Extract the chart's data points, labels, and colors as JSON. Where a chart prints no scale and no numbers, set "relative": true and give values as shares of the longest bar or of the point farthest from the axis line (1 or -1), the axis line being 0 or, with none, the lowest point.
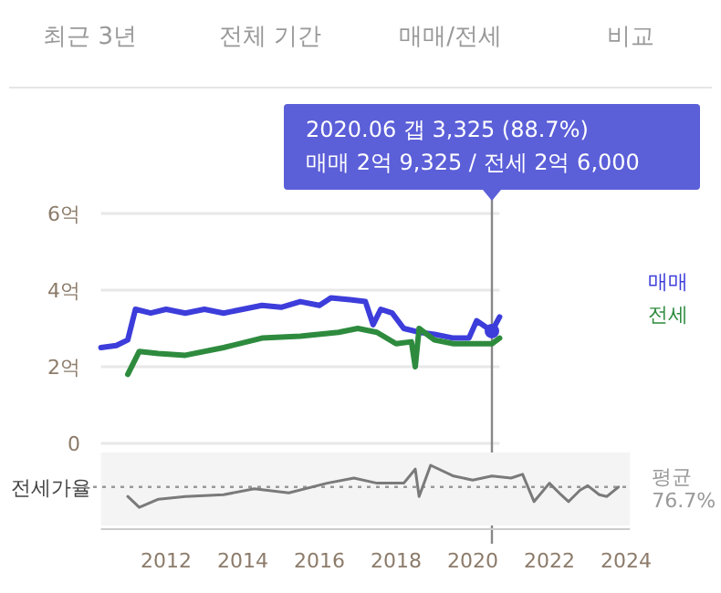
{
  "chart_data": [
    {
      "type": "other",
      "annotations": [
        "최근 3년",
        "전체 기간",
        "매매/전세",
        "비교"
      ]
    },
    {
      "type": "line",
      "xlim": [
        2010.3,
        2020.7
      ],
      "ylim": [
        0,
        6
      ],
      "yticks": [
        {
          "value": 6,
          "label": "6억"
        },
        {
          "value": 4,
          "label": "4억"
        },
        {
          "value": 2,
          "label": "2억"
        },
        0
      ],
      "xticks": [
        2012,
        2014,
        2016,
        2018,
        2020
      ],
      "grid": "y",
      "tick_labels": "y",
      "marker": "none",
      "line_style": "solid",
      "ref_lines": [
        {
          "axis": "x",
          "value": 2020.5,
          "label": null,
          "color": "#888888"
        }
      ],
      "annotations": [
        "2020.06  갭 3,325 (88.7%)\n매매 2억 9,325 / 전세 2억 6,000"
      ],
      "series": [
        {
          "name": "매매",
          "color": "#3d3ddb",
          "x": [
            2010.3,
            2010.7,
            2011.0,
            2011.2,
            2011.6,
            2012,
            2012.5,
            2013,
            2013.5,
            2014,
            2014.5,
            2015,
            2015.5,
            2016,
            2016.3,
            2016.8,
            2017.2,
            2017.4,
            2017.6,
            2017.9,
            2018.2,
            2018.6,
            2019,
            2019.5,
            2019.9,
            2020.1,
            2020.5,
            2020.7
          ],
          "values": [
            2.5,
            2.55,
            2.7,
            3.5,
            3.4,
            3.5,
            3.4,
            3.5,
            3.4,
            3.5,
            3.6,
            3.55,
            3.7,
            3.6,
            3.8,
            3.75,
            3.7,
            3.1,
            3.5,
            3.4,
            3.0,
            2.9,
            2.85,
            2.75,
            2.75,
            3.2,
            2.93,
            3.3
          ]
        },
        {
          "name": "전세",
          "color": "#2e8b3e",
          "x": [
            2011.0,
            2011.3,
            2011.8,
            2012.5,
            2013.5,
            2014.5,
            2015.5,
            2016.5,
            2017.0,
            2017.5,
            2018.0,
            2018.4,
            2018.5,
            2018.6,
            2019.0,
            2019.5,
            2020.0,
            2020.5,
            2020.7
          ],
          "values": [
            1.8,
            2.4,
            2.35,
            2.3,
            2.5,
            2.75,
            2.8,
            2.9,
            3.0,
            2.9,
            2.6,
            2.65,
            2.0,
            3.0,
            2.7,
            2.6,
            2.6,
            2.6,
            2.75
          ]
        }
      ]
    },
    {
      "type": "line",
      "relative": true,
      "xlim": [
        2010.3,
        2024.1
      ],
      "xticks": [
        2012,
        2014,
        2016,
        2018,
        2020,
        2022,
        2024
      ],
      "tick_labels": "x",
      "ylabel": "전세가율",
      "marker": "none",
      "line_style": "solid",
      "ref_lines": [
        {
          "axis": "y",
          "value": 0.66,
          "label": "평균 76.7%",
          "color": "#999999",
          "line_style": "dotted"
        }
      ],
      "series": [
        {
          "color": "#7a7a7a",
          "x": [
            2011.0,
            2011.3,
            2011.8,
            2012.5,
            2013.5,
            2014.3,
            2015.2,
            2016.2,
            2016.9,
            2017.5,
            2018.2,
            2018.5,
            2018.6,
            2018.9,
            2019.5,
            2020.0,
            2020.5,
            2021.0,
            2021.3,
            2021.6,
            2022.0,
            2022.3,
            2022.5,
            2022.8,
            2023.0,
            2023.3,
            2023.5,
            2023.8
          ],
          "values": [
            0.51,
            0.34,
            0.47,
            0.51,
            0.54,
            0.63,
            0.57,
            0.72,
            0.8,
            0.72,
            0.72,
            0.94,
            0.51,
            1,
            0.83,
            0.77,
            0.83,
            0.8,
            0.86,
            0.43,
            0.72,
            0.54,
            0.43,
            0.61,
            0.68,
            0.54,
            0.51,
            0.66
          ]
        }
      ]
    }
  ]
}
